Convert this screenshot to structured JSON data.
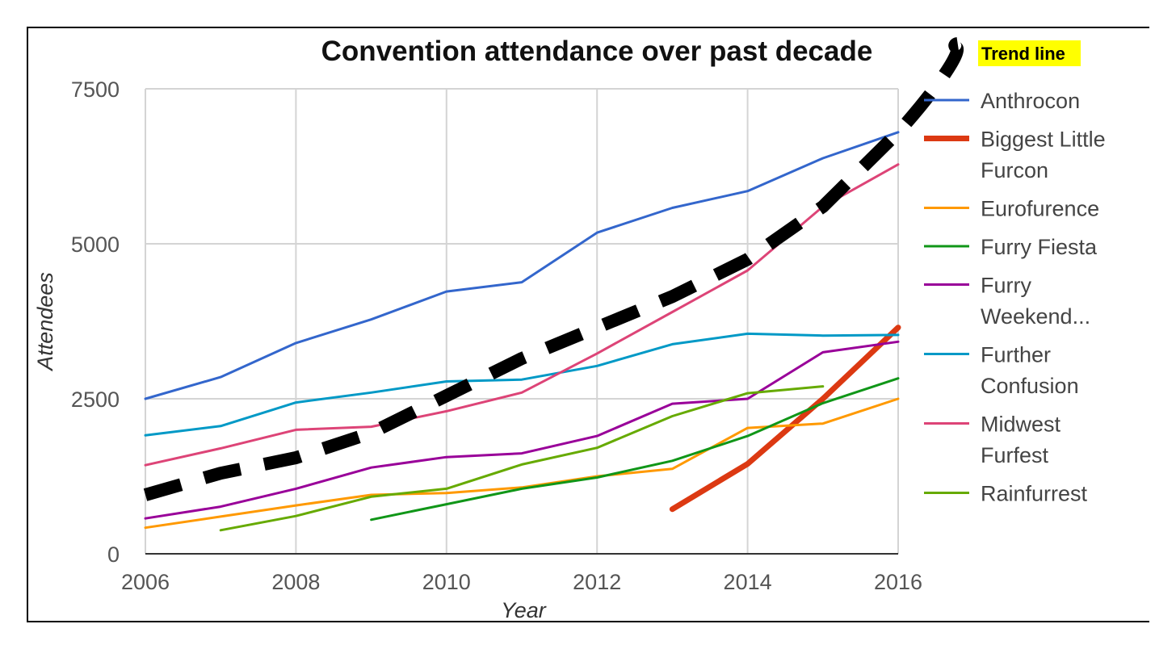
{
  "chart_data": {
    "type": "line",
    "title": "Convention attendance over past decade",
    "xlabel": "Year",
    "ylabel": "Attendees",
    "xlim": [
      2006,
      2016
    ],
    "ylim": [
      0,
      7500
    ],
    "x_ticks": [
      "2006",
      "2008",
      "2010",
      "2012",
      "2014",
      "2016"
    ],
    "y_ticks": [
      "0",
      "2500",
      "5000",
      "7500"
    ],
    "grid": true,
    "legend_position": "right",
    "annotation": {
      "text": "Trend line",
      "highlight_color": "#ffff00"
    },
    "series": [
      {
        "name": "Anthrocon",
        "color": "#3366cc",
        "bold": false,
        "points": [
          [
            2006,
            2500
          ],
          [
            2007,
            2850
          ],
          [
            2008,
            3400
          ],
          [
            2009,
            3780
          ],
          [
            2010,
            4230
          ],
          [
            2011,
            4380
          ],
          [
            2012,
            5180
          ],
          [
            2013,
            5580
          ],
          [
            2014,
            5850
          ],
          [
            2015,
            6380
          ],
          [
            2016,
            6800
          ]
        ]
      },
      {
        "name": "Biggest Little Furcon",
        "color": "#dc3912",
        "bold": true,
        "points": [
          [
            2013,
            720
          ],
          [
            2014,
            1450
          ],
          [
            2015,
            2500
          ],
          [
            2016,
            3650
          ]
        ]
      },
      {
        "name": "Eurofurence",
        "color": "#ff9900",
        "bold": false,
        "points": [
          [
            2006,
            420
          ],
          [
            2007,
            600
          ],
          [
            2008,
            780
          ],
          [
            2009,
            950
          ],
          [
            2010,
            980
          ],
          [
            2011,
            1070
          ],
          [
            2012,
            1250
          ],
          [
            2013,
            1370
          ],
          [
            2014,
            2030
          ],
          [
            2015,
            2100
          ],
          [
            2016,
            2500
          ]
        ]
      },
      {
        "name": "Furry Fiesta",
        "color": "#109618",
        "bold": false,
        "points": [
          [
            2009,
            550
          ],
          [
            2010,
            800
          ],
          [
            2011,
            1050
          ],
          [
            2012,
            1230
          ],
          [
            2013,
            1500
          ],
          [
            2014,
            1900
          ],
          [
            2015,
            2430
          ],
          [
            2016,
            2830
          ]
        ]
      },
      {
        "name": "Furry Weekend...",
        "color": "#990099",
        "bold": false,
        "points": [
          [
            2006,
            570
          ],
          [
            2007,
            760
          ],
          [
            2008,
            1050
          ],
          [
            2009,
            1390
          ],
          [
            2010,
            1560
          ],
          [
            2011,
            1620
          ],
          [
            2012,
            1900
          ],
          [
            2013,
            2420
          ],
          [
            2014,
            2500
          ],
          [
            2015,
            3250
          ],
          [
            2016,
            3420
          ]
        ]
      },
      {
        "name": "Further Confusion",
        "color": "#0099c6",
        "bold": false,
        "points": [
          [
            2006,
            1910
          ],
          [
            2007,
            2060
          ],
          [
            2008,
            2440
          ],
          [
            2009,
            2600
          ],
          [
            2010,
            2780
          ],
          [
            2011,
            2810
          ],
          [
            2012,
            3030
          ],
          [
            2013,
            3380
          ],
          [
            2014,
            3550
          ],
          [
            2015,
            3520
          ],
          [
            2016,
            3530
          ]
        ]
      },
      {
        "name": "Midwest Furfest",
        "color": "#dd4477",
        "bold": false,
        "points": [
          [
            2006,
            1430
          ],
          [
            2007,
            1700
          ],
          [
            2008,
            2000
          ],
          [
            2009,
            2050
          ],
          [
            2010,
            2300
          ],
          [
            2011,
            2600
          ],
          [
            2012,
            3230
          ],
          [
            2013,
            3900
          ],
          [
            2014,
            4570
          ],
          [
            2015,
            5600
          ],
          [
            2016,
            6280
          ]
        ]
      },
      {
        "name": "Rainfurrest",
        "color": "#66aa00",
        "bold": false,
        "points": [
          [
            2007,
            380
          ],
          [
            2008,
            610
          ],
          [
            2009,
            920
          ],
          [
            2010,
            1050
          ],
          [
            2011,
            1440
          ],
          [
            2012,
            1710
          ],
          [
            2013,
            2220
          ],
          [
            2014,
            2590
          ],
          [
            2015,
            2700
          ]
        ]
      }
    ],
    "trend_line": {
      "color": "#000000",
      "points": [
        [
          2006,
          950
        ],
        [
          2007,
          1300
        ],
        [
          2008,
          1550
        ],
        [
          2009,
          1950
        ],
        [
          2010,
          2550
        ],
        [
          2011,
          3150
        ],
        [
          2012,
          3650
        ],
        [
          2013,
          4150
        ],
        [
          2014,
          4750
        ],
        [
          2015,
          5600
        ],
        [
          2016,
          6800
        ]
      ]
    }
  }
}
